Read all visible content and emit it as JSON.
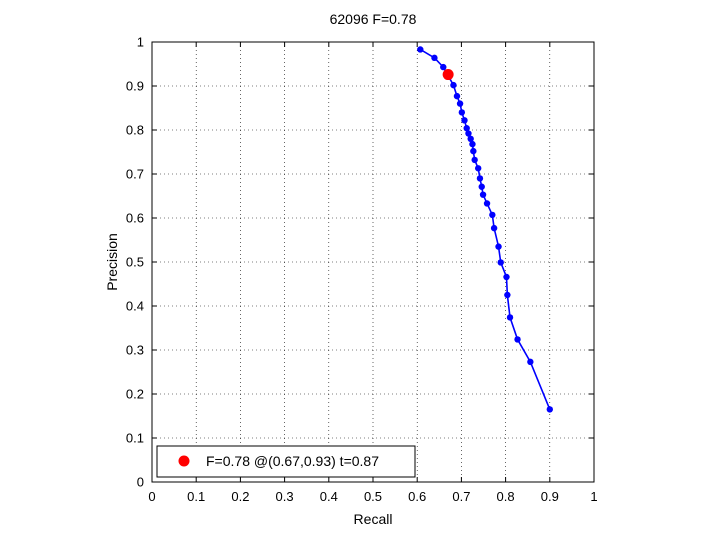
{
  "chart_data": {
    "type": "line",
    "title": "62096 F=0.78",
    "xlabel": "Recall",
    "ylabel": "Precision",
    "xlim": [
      0,
      1
    ],
    "ylim": [
      0,
      1
    ],
    "grid": true,
    "x_ticks": [
      "0",
      "0.1",
      "0.2",
      "0.3",
      "0.4",
      "0.5",
      "0.6",
      "0.7",
      "0.8",
      "0.9",
      "1"
    ],
    "y_ticks": [
      "0",
      "0.1",
      "0.2",
      "0.3",
      "0.4",
      "0.5",
      "0.6",
      "0.7",
      "0.8",
      "0.9",
      "1"
    ],
    "series": [
      {
        "color": "#0000ff",
        "points": [
          [
            0.607,
            0.983
          ],
          [
            0.639,
            0.964
          ],
          [
            0.659,
            0.943
          ],
          [
            0.682,
            0.902
          ],
          [
            0.69,
            0.877
          ],
          [
            0.697,
            0.86
          ],
          [
            0.701,
            0.84
          ],
          [
            0.707,
            0.822
          ],
          [
            0.712,
            0.804
          ],
          [
            0.716,
            0.792
          ],
          [
            0.721,
            0.78
          ],
          [
            0.725,
            0.768
          ],
          [
            0.727,
            0.752
          ],
          [
            0.73,
            0.732
          ],
          [
            0.738,
            0.713
          ],
          [
            0.742,
            0.69
          ],
          [
            0.746,
            0.671
          ],
          [
            0.749,
            0.653
          ],
          [
            0.758,
            0.633
          ],
          [
            0.77,
            0.607
          ],
          [
            0.774,
            0.577
          ],
          [
            0.784,
            0.535
          ],
          [
            0.789,
            0.499
          ],
          [
            0.802,
            0.466
          ],
          [
            0.804,
            0.425
          ],
          [
            0.81,
            0.374
          ],
          [
            0.827,
            0.324
          ],
          [
            0.856,
            0.273
          ],
          [
            0.9,
            0.165
          ]
        ]
      }
    ],
    "best_point": {
      "x": 0.67,
      "y": 0.926,
      "color": "#ff0000"
    },
    "legend": {
      "position": "bottom-left",
      "label": "F=0.78 @(0.67,0.93) t=0.87"
    }
  }
}
